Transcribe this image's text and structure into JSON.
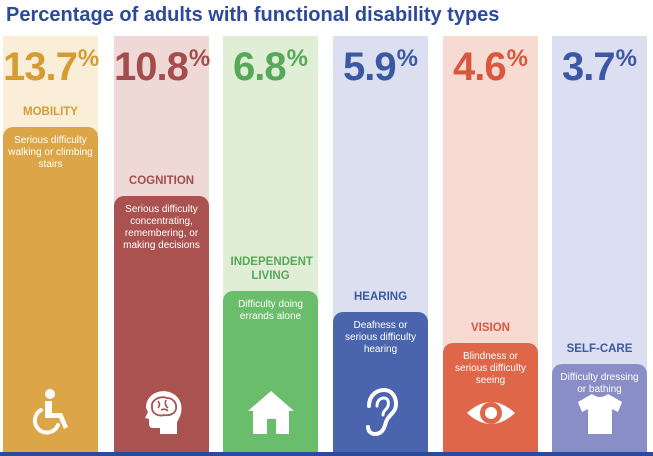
{
  "title": "Percentage of adults with functional disability types",
  "chart_data": {
    "type": "bar",
    "title": "Percentage of adults with functional disability types",
    "categories": [
      "MOBILITY",
      "COGNITION",
      "INDEPENDENT LIVING",
      "HEARING",
      "VISION",
      "SELF-CARE"
    ],
    "values": [
      13.7,
      10.8,
      6.8,
      5.9,
      4.6,
      3.7
    ],
    "value_labels": [
      "13.7",
      "10.8",
      "6.8",
      "5.9",
      "4.6",
      "3.7"
    ],
    "percent_sign": "%",
    "descriptions": [
      "Serious difficulty walking or climbing stairs",
      "Serious difficulty concentrating, remembering, or making decisions",
      "Difficulty doing errands alone",
      "Deafness or serious difficulty hearing",
      "Blindness or serious difficulty seeing",
      "Difficulty dressing or bathing"
    ],
    "icons": [
      "wheelchair-icon",
      "brain-head-icon",
      "house-icon",
      "ear-icon",
      "eye-icon",
      "shirt-icon"
    ],
    "colors": {
      "bars": [
        "#dca548",
        "#a9524f",
        "#6abd6b",
        "#4a65ad",
        "#e0664a",
        "#8a8ec6"
      ],
      "backgrounds": [
        "#fbeed8",
        "#efd9d7",
        "#dfeed4",
        "#dcdfef",
        "#f7dbd2",
        "#dcdff1"
      ],
      "labels": [
        "#d59c32",
        "#a44d4d",
        "#56a85a",
        "#3a59a4",
        "#d9573e",
        "#3c57a3"
      ]
    }
  }
}
